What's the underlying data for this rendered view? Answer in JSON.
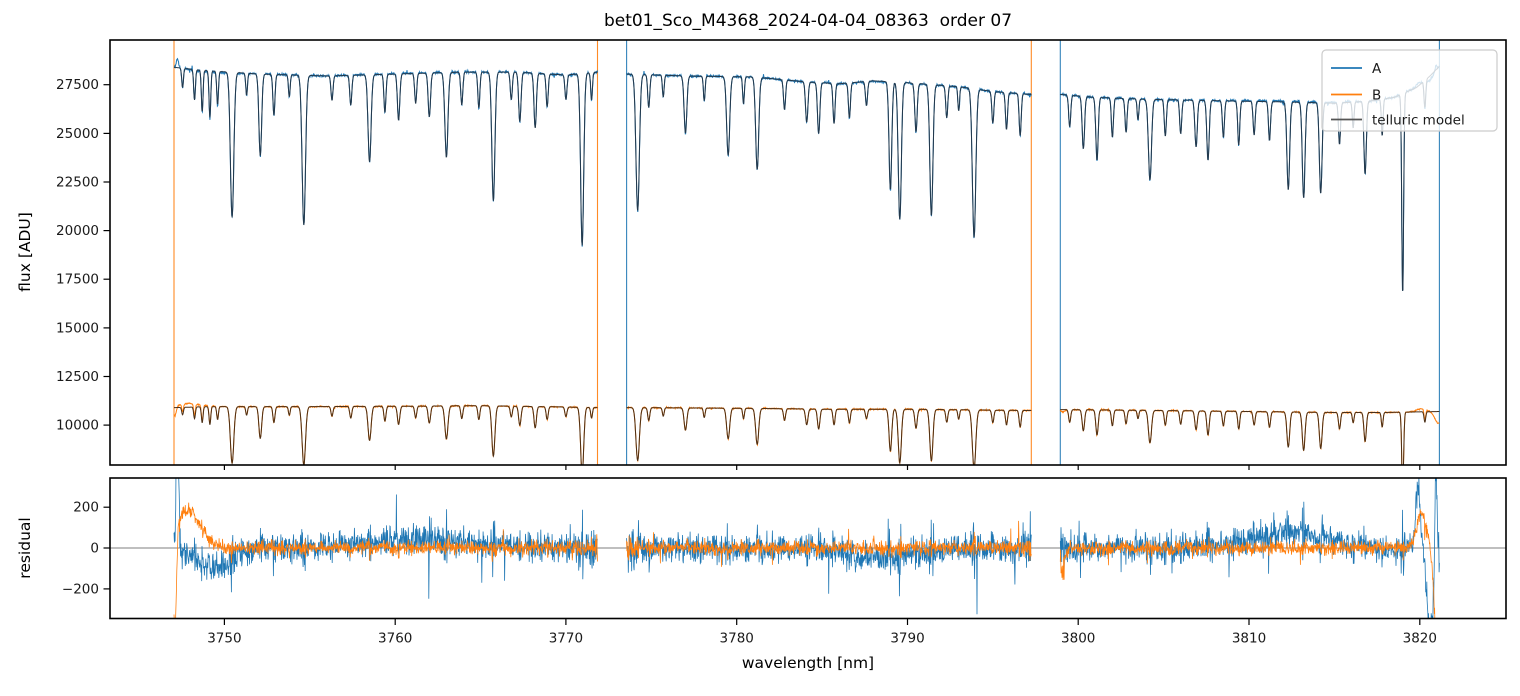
{
  "title": "bet01_Sco_M4368_2024-04-04_08363  order 07",
  "colors": {
    "a": "#1f77b4",
    "b": "#ff7f0e",
    "model_legend": "#555555",
    "model_over_a": "#24384a",
    "model_over_b": "#4a2f17",
    "spine": "#000000",
    "text": "#1a1a1a",
    "zero_line": "#7f7f7f",
    "legend_bg": "rgba(255,255,255,0.8)",
    "legend_border": "#cccccc"
  },
  "legend": {
    "items": [
      {
        "label": "A",
        "color": "#1f77b4"
      },
      {
        "label": "B",
        "color": "#ff7f0e"
      },
      {
        "label": "telluric model",
        "color": "#555555"
      }
    ]
  },
  "axes": {
    "x": {
      "label": "wavelength [nm]",
      "lim": [
        3743.3,
        3825.05
      ],
      "ticks": [
        {
          "v": 3750,
          "l": "3750"
        },
        {
          "v": 3760,
          "l": "3760"
        },
        {
          "v": 3770,
          "l": "3770"
        },
        {
          "v": 3780,
          "l": "3780"
        },
        {
          "v": 3790,
          "l": "3790"
        },
        {
          "v": 3800,
          "l": "3800"
        },
        {
          "v": 3810,
          "l": "3810"
        },
        {
          "v": 3820,
          "l": "3820"
        }
      ]
    },
    "top": {
      "ylabel": "flux [ADU]",
      "lim": [
        7950,
        29800
      ],
      "ticks": [
        {
          "v": 10000,
          "l": "10000"
        },
        {
          "v": 12500,
          "l": "12500"
        },
        {
          "v": 15000,
          "l": "15000"
        },
        {
          "v": 17500,
          "l": "17500"
        },
        {
          "v": 20000,
          "l": "20000"
        },
        {
          "v": 22500,
          "l": "22500"
        },
        {
          "v": 25000,
          "l": "25000"
        },
        {
          "v": 27500,
          "l": "27500"
        }
      ]
    },
    "bottom": {
      "ylabel": "residual",
      "lim": [
        -345,
        343
      ],
      "zero_line": 0,
      "ticks": [
        {
          "v": -200,
          "l": "−200"
        },
        {
          "v": 0,
          "l": "0"
        },
        {
          "v": 200,
          "l": "200"
        }
      ]
    }
  },
  "chart_data": {
    "type": "line",
    "title": "bet01_Sco_M4368_2024-04-04_08363  order 07",
    "xlabel": "wavelength [nm]",
    "panels": [
      {
        "name": "flux",
        "ylabel": "flux [ADU]",
        "ylim": [
          7950,
          29800
        ]
      },
      {
        "name": "residual",
        "ylabel": "residual",
        "ylim": [
          -345,
          343
        ]
      }
    ],
    "series_names": [
      "A",
      "B",
      "telluric model"
    ],
    "segments": [
      {
        "range": [
          3747.05,
          3771.85
        ],
        "a_continuum": [
          [
            3747.05,
            28400
          ],
          [
            3748.5,
            28250
          ],
          [
            3752,
            28050
          ],
          [
            3756,
            27950
          ],
          [
            3760,
            28050
          ],
          [
            3764,
            28150
          ],
          [
            3767,
            28150
          ],
          [
            3770,
            28000
          ],
          [
            3771.85,
            28150
          ]
        ],
        "b_continuum": [
          [
            3747.05,
            10900
          ],
          [
            3749,
            10950
          ],
          [
            3755,
            10950
          ],
          [
            3760,
            10970
          ],
          [
            3765,
            11000
          ],
          [
            3770,
            10930
          ],
          [
            3771.85,
            10900
          ]
        ]
      },
      {
        "range": [
          3773.55,
          3797.25
        ],
        "a_continuum": [
          [
            3773.55,
            28050
          ],
          [
            3777,
            27950
          ],
          [
            3781,
            27900
          ],
          [
            3784,
            27650
          ],
          [
            3786,
            27550
          ],
          [
            3788,
            27700
          ],
          [
            3790,
            27600
          ],
          [
            3793,
            27400
          ],
          [
            3795,
            27150
          ],
          [
            3797.25,
            27000
          ]
        ],
        "b_continuum": [
          [
            3773.55,
            10900
          ],
          [
            3780,
            10870
          ],
          [
            3785,
            10820
          ],
          [
            3790,
            10820
          ],
          [
            3794,
            10780
          ],
          [
            3797.25,
            10750
          ]
        ]
      },
      {
        "range": [
          3798.95,
          3821.15
        ],
        "a_continuum": [
          [
            3798.95,
            27000
          ],
          [
            3801,
            26850
          ],
          [
            3804,
            26750
          ],
          [
            3807,
            26700
          ],
          [
            3810,
            26650
          ],
          [
            3813,
            26600
          ],
          [
            3815,
            26550
          ],
          [
            3817,
            26650
          ],
          [
            3818.5,
            26850
          ],
          [
            3819.8,
            27350
          ],
          [
            3820.6,
            27950
          ],
          [
            3821.15,
            28450
          ]
        ],
        "b_continuum": [
          [
            3798.95,
            10800
          ],
          [
            3805,
            10750
          ],
          [
            3810,
            10700
          ],
          [
            3815,
            10650
          ],
          [
            3818,
            10650
          ],
          [
            3821.15,
            10700
          ]
        ]
      }
    ],
    "telluric_lines": [
      [
        3747.55,
        0.035,
        0.05
      ],
      [
        3748.25,
        0.055,
        0.05
      ],
      [
        3748.7,
        0.075,
        0.05
      ],
      [
        3749.15,
        0.085,
        0.05
      ],
      [
        3749.6,
        0.06,
        0.05
      ],
      [
        3750.45,
        0.265,
        0.1
      ],
      [
        3751.3,
        0.04,
        0.05
      ],
      [
        3752.1,
        0.15,
        0.08
      ],
      [
        3752.9,
        0.075,
        0.06
      ],
      [
        3753.8,
        0.04,
        0.05
      ],
      [
        3754.65,
        0.275,
        0.1
      ],
      [
        3756.3,
        0.045,
        0.06
      ],
      [
        3757.4,
        0.055,
        0.06
      ],
      [
        3758.5,
        0.16,
        0.09
      ],
      [
        3759.4,
        0.07,
        0.06
      ],
      [
        3760.2,
        0.085,
        0.07
      ],
      [
        3761.2,
        0.055,
        0.06
      ],
      [
        3762.0,
        0.08,
        0.07
      ],
      [
        3763.0,
        0.155,
        0.09
      ],
      [
        3763.9,
        0.06,
        0.06
      ],
      [
        3764.9,
        0.065,
        0.06
      ],
      [
        3765.75,
        0.235,
        0.09
      ],
      [
        3766.8,
        0.05,
        0.06
      ],
      [
        3767.3,
        0.09,
        0.07
      ],
      [
        3768.2,
        0.1,
        0.07
      ],
      [
        3768.9,
        0.06,
        0.06
      ],
      [
        3770.0,
        0.045,
        0.06
      ],
      [
        3770.95,
        0.315,
        0.09
      ],
      [
        3771.5,
        0.05,
        0.05
      ],
      [
        3774.2,
        0.25,
        0.1
      ],
      [
        3774.85,
        0.06,
        0.06
      ],
      [
        3775.7,
        0.04,
        0.05
      ],
      [
        3777.0,
        0.105,
        0.08
      ],
      [
        3778.1,
        0.045,
        0.05
      ],
      [
        3779.5,
        0.145,
        0.09
      ],
      [
        3780.4,
        0.05,
        0.05
      ],
      [
        3781.2,
        0.17,
        0.09
      ],
      [
        3782.8,
        0.055,
        0.06
      ],
      [
        3784.1,
        0.075,
        0.07
      ],
      [
        3784.8,
        0.095,
        0.07
      ],
      [
        3785.7,
        0.075,
        0.06
      ],
      [
        3786.6,
        0.065,
        0.06
      ],
      [
        3787.6,
        0.045,
        0.06
      ],
      [
        3789.0,
        0.2,
        0.08
      ],
      [
        3789.55,
        0.255,
        0.09
      ],
      [
        3790.5,
        0.09,
        0.07
      ],
      [
        3791.4,
        0.245,
        0.09
      ],
      [
        3792.3,
        0.06,
        0.06
      ],
      [
        3793.0,
        0.045,
        0.05
      ],
      [
        3793.9,
        0.28,
        0.1
      ],
      [
        3795.0,
        0.06,
        0.06
      ],
      [
        3795.8,
        0.07,
        0.06
      ],
      [
        3796.6,
        0.08,
        0.06
      ],
      [
        3799.5,
        0.06,
        0.06
      ],
      [
        3800.3,
        0.1,
        0.07
      ],
      [
        3801.1,
        0.12,
        0.07
      ],
      [
        3802.0,
        0.075,
        0.06
      ],
      [
        3802.8,
        0.065,
        0.06
      ],
      [
        3803.5,
        0.04,
        0.05
      ],
      [
        3804.2,
        0.155,
        0.09
      ],
      [
        3805.1,
        0.07,
        0.06
      ],
      [
        3806.0,
        0.065,
        0.06
      ],
      [
        3806.9,
        0.09,
        0.07
      ],
      [
        3807.6,
        0.115,
        0.07
      ],
      [
        3808.5,
        0.07,
        0.06
      ],
      [
        3809.4,
        0.085,
        0.06
      ],
      [
        3810.3,
        0.065,
        0.06
      ],
      [
        3811.2,
        0.075,
        0.06
      ],
      [
        3812.3,
        0.17,
        0.08
      ],
      [
        3813.2,
        0.185,
        0.08
      ],
      [
        3814.2,
        0.175,
        0.08
      ],
      [
        3815.3,
        0.08,
        0.06
      ],
      [
        3816.1,
        0.05,
        0.05
      ],
      [
        3816.8,
        0.14,
        0.07
      ],
      [
        3817.8,
        0.07,
        0.05
      ],
      [
        3819.0,
        0.38,
        0.055
      ],
      [
        3820.3,
        0.05,
        0.05
      ]
    ],
    "segment_edges": [
      {
        "w": 3747.05,
        "color": "#ff7f0e"
      },
      {
        "w": 3771.85,
        "color": "#ff7f0e"
      },
      {
        "w": 3773.55,
        "color": "#1f77b4"
      },
      {
        "w": 3797.25,
        "color": "#ff7f0e"
      },
      {
        "w": 3798.95,
        "color": "#1f77b4"
      },
      {
        "w": 3821.15,
        "color": "#1f77b4"
      }
    ],
    "bias_a": [
      [
        3747.25,
        800,
        0.09
      ],
      [
        3749.5,
        -90,
        1.5
      ],
      [
        3761,
        40,
        4
      ],
      [
        3788.5,
        -50,
        2.5
      ],
      [
        3812.5,
        75,
        3.0
      ],
      [
        3819.9,
        300,
        0.18
      ],
      [
        3820.6,
        -400,
        0.25
      ],
      [
        3820.95,
        500,
        0.07
      ]
    ],
    "bias_b": [
      [
        3747.1,
        -520,
        0.12
      ],
      [
        3747.9,
        185,
        1.0
      ],
      [
        3799.1,
        -120,
        0.15
      ],
      [
        3820.1,
        170,
        0.4
      ],
      [
        3821.1,
        -600,
        0.3
      ]
    ],
    "noise": {
      "a_flux": 60,
      "b_flux": 30,
      "a_res": 66,
      "b_res": 32
    }
  }
}
